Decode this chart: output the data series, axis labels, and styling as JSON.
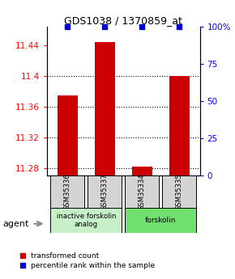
{
  "title": "GDS1038 / 1370859_at",
  "samples": [
    "GSM35336",
    "GSM35337",
    "GSM35334",
    "GSM35335"
  ],
  "red_values": [
    11.375,
    11.445,
    11.282,
    11.4
  ],
  "blue_values": [
    100,
    100,
    100,
    100
  ],
  "ylim_left": [
    11.27,
    11.465
  ],
  "ylim_right": [
    0,
    100
  ],
  "yticks_left": [
    11.28,
    11.32,
    11.36,
    11.4,
    11.44
  ],
  "yticks_right": [
    0,
    25,
    50,
    75,
    100
  ],
  "ytick_labels_right": [
    "0",
    "25",
    "50",
    "75",
    "100%"
  ],
  "groups": [
    {
      "label": "inactive forskolin\nanalog",
      "color": "#c8f0c8"
    },
    {
      "label": "forskolin",
      "color": "#70e070"
    }
  ],
  "bar_color": "#cc0000",
  "dot_color": "#0000cc",
  "bar_width": 0.55,
  "agent_label": "agent",
  "legend_red": "transformed count",
  "legend_blue": "percentile rank within the sample",
  "sample_box_color": "#d4d4d4",
  "base_value": 11.27
}
